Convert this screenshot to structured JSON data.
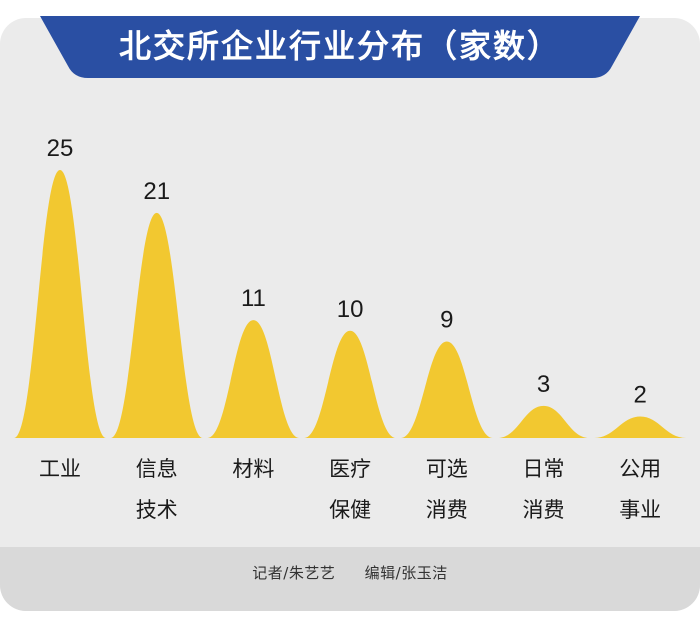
{
  "title": "北交所企业行业分布（家数）",
  "colors": {
    "banner": "#2a4fa3",
    "peak": "#f2c830",
    "background": "#ebebeb",
    "footer": "#d9d9d9"
  },
  "chart_data": {
    "type": "area",
    "categories": [
      [
        "工业"
      ],
      [
        "信息",
        "技术"
      ],
      [
        "材料"
      ],
      [
        "医疗",
        "保健"
      ],
      [
        "可选",
        "消费"
      ],
      [
        "日常",
        "消费"
      ],
      [
        "公用",
        "事业"
      ]
    ],
    "values": [
      25,
      21,
      11,
      10,
      9,
      3,
      2
    ],
    "ylim": [
      0,
      25
    ],
    "grid": false,
    "legend": "none"
  },
  "footer": {
    "reporter": "记者/朱艺艺",
    "editor": "编辑/张玉洁"
  }
}
